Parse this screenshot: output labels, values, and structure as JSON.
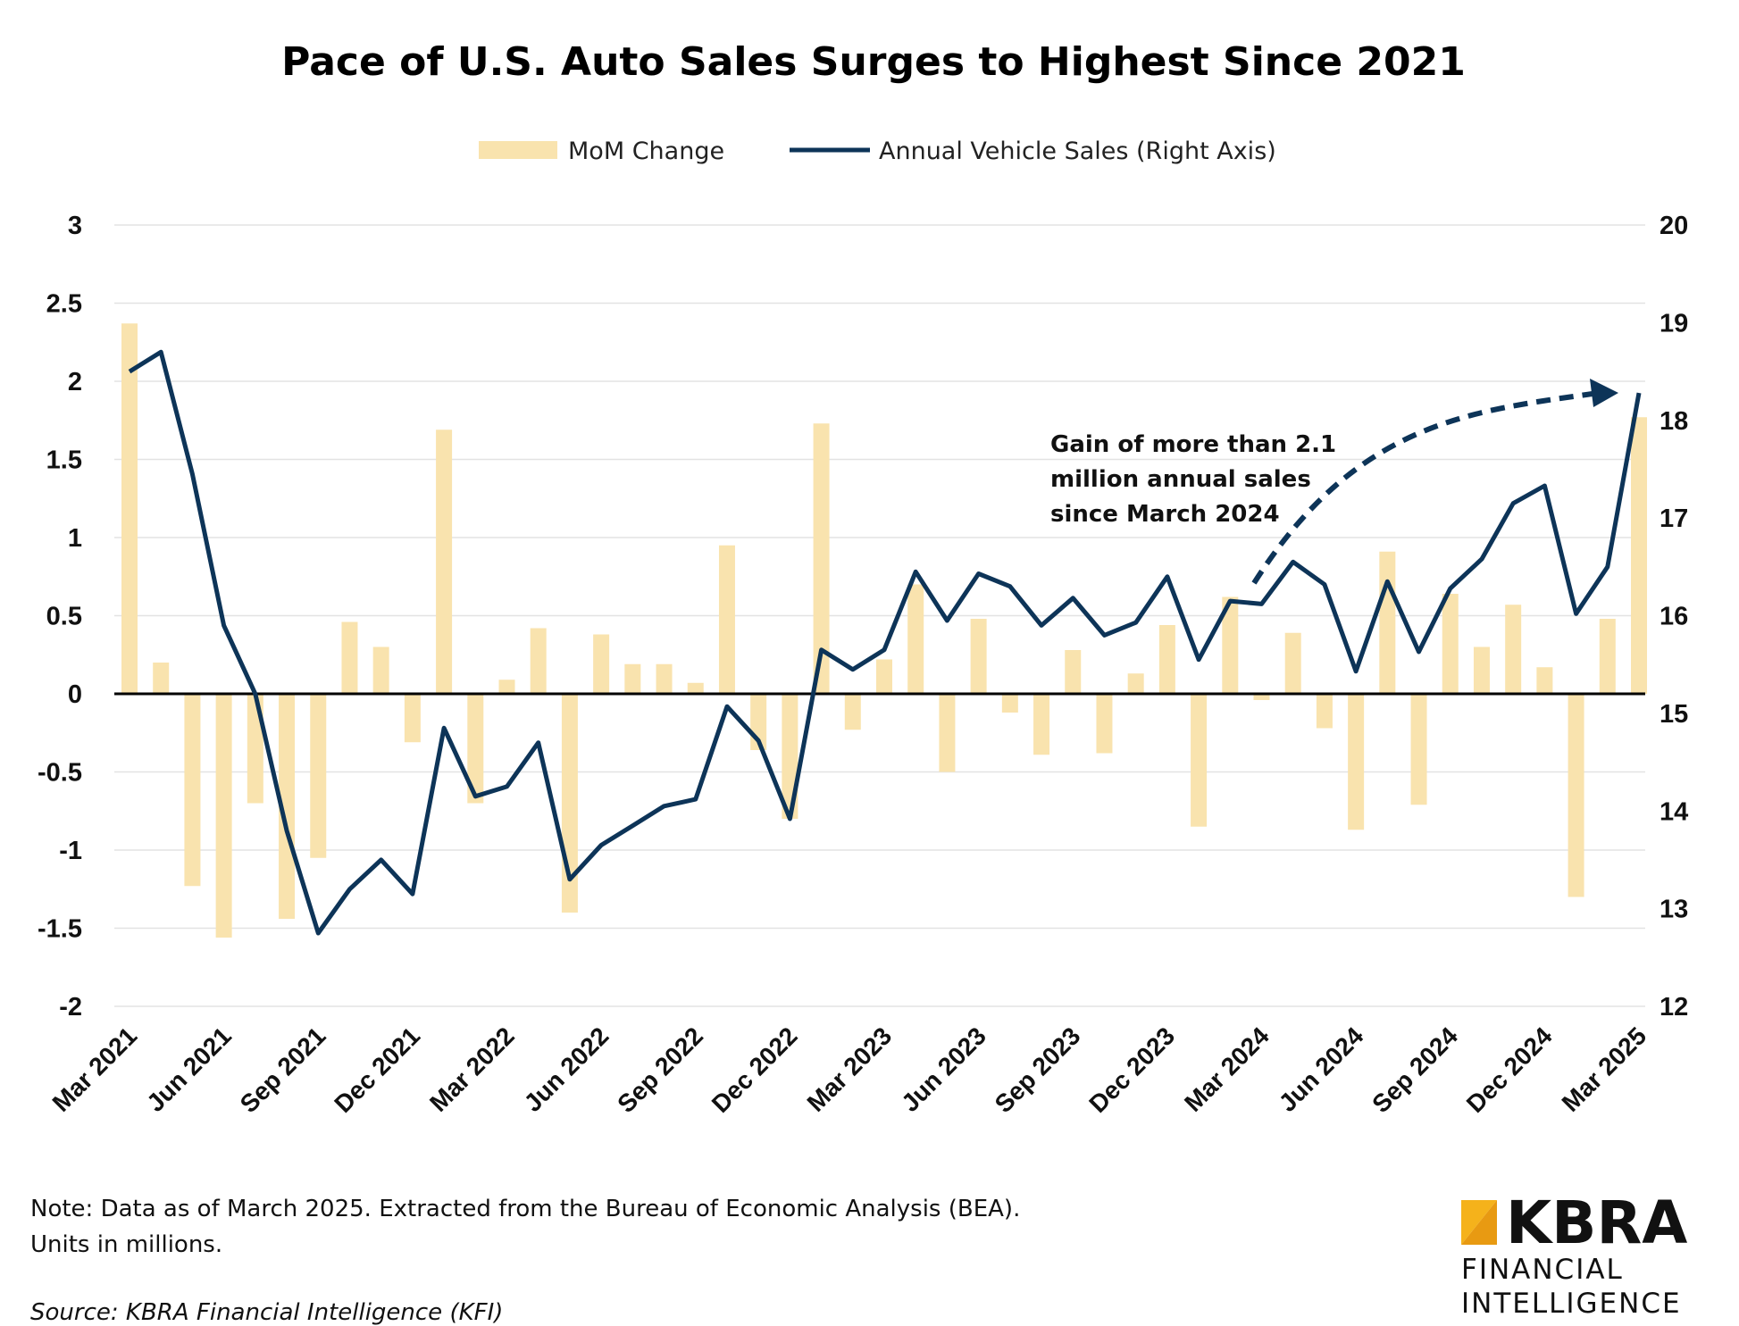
{
  "chart_data": {
    "type": "bar+line",
    "title": "Pace of U.S. Auto Sales Surges to Highest Since 2021",
    "legend_position": "top-center",
    "grid": true,
    "x": [
      "Mar 2021",
      "Apr 2021",
      "May 2021",
      "Jun 2021",
      "Jul 2021",
      "Aug 2021",
      "Sep 2021",
      "Oct 2021",
      "Nov 2021",
      "Dec 2021",
      "Jan 2022",
      "Feb 2022",
      "Mar 2022",
      "Apr 2022",
      "May 2022",
      "Jun 2022",
      "Jul 2022",
      "Aug 2022",
      "Sep 2022",
      "Oct 2022",
      "Nov 2022",
      "Dec 2022",
      "Jan 2023",
      "Feb 2023",
      "Mar 2023",
      "Apr 2023",
      "May 2023",
      "Jun 2023",
      "Jul 2023",
      "Aug 2023",
      "Sep 2023",
      "Oct 2023",
      "Nov 2023",
      "Dec 2023",
      "Jan 2024",
      "Feb 2024",
      "Mar 2024",
      "Apr 2024",
      "May 2024",
      "Jun 2024",
      "Jul 2024",
      "Aug 2024",
      "Sep 2024",
      "Oct 2024",
      "Nov 2024",
      "Dec 2024",
      "Jan 2025",
      "Feb 2025",
      "Mar 2025"
    ],
    "x_tick_labels": [
      "Mar 2021",
      "Jun 2021",
      "Sep 2021",
      "Dec 2021",
      "Mar 2022",
      "Jun 2022",
      "Sep 2022",
      "Dec 2022",
      "Mar 2023",
      "Jun 2023",
      "Sep 2023",
      "Dec 2023",
      "Mar 2024",
      "Jun 2024",
      "Sep 2024",
      "Dec 2024",
      "Mar 2025"
    ],
    "y_left": {
      "range": [
        -2,
        3
      ],
      "ticks": [
        "3",
        "2.5",
        "2",
        "1.5",
        "1",
        "0.5",
        "0",
        "-0.5",
        "-1",
        "-1.5",
        "-2"
      ]
    },
    "y_right": {
      "range": [
        12,
        20
      ],
      "ticks": [
        "20",
        "19",
        "18",
        "17",
        "16",
        "15",
        "14",
        "13",
        "12"
      ]
    },
    "series": [
      {
        "name": "MoM Change",
        "type": "bar",
        "axis": "left",
        "color": "#f9e3ae",
        "values": [
          2.37,
          0.2,
          -1.23,
          -1.56,
          -0.7,
          -1.44,
          -1.05,
          0.46,
          0.3,
          -0.31,
          1.69,
          -0.7,
          0.09,
          0.42,
          -1.4,
          0.38,
          0.19,
          0.19,
          0.07,
          0.95,
          -0.36,
          -0.8,
          1.73,
          -0.23,
          0.22,
          0.7,
          -0.5,
          0.48,
          -0.12,
          -0.39,
          0.28,
          -0.38,
          0.13,
          0.44,
          -0.85,
          0.62,
          -0.04,
          0.39,
          -0.22,
          -0.87,
          0.91,
          -0.71,
          0.64,
          0.3,
          0.57,
          0.17,
          -1.3,
          0.48,
          1.77
        ]
      },
      {
        "name": "Annual Vehicle Sales (Right Axis)",
        "type": "line",
        "axis": "right",
        "color": "#0d3458",
        "values": [
          18.5,
          18.7,
          17.45,
          15.9,
          15.2,
          13.8,
          12.75,
          13.2,
          13.5,
          13.15,
          14.85,
          14.15,
          14.25,
          14.7,
          13.3,
          13.65,
          13.85,
          14.05,
          14.12,
          15.07,
          14.72,
          13.92,
          15.65,
          15.45,
          15.65,
          16.45,
          15.95,
          16.43,
          16.3,
          15.9,
          16.18,
          15.8,
          15.93,
          16.4,
          15.55,
          16.15,
          16.12,
          16.55,
          16.32,
          15.43,
          16.35,
          15.63,
          16.28,
          16.58,
          17.15,
          17.33,
          16.02,
          16.5,
          18.28
        ]
      }
    ],
    "annotation": {
      "lines": [
        "Gain of more than 2.1",
        "million annual sales",
        "since March 2024"
      ]
    },
    "note_lines": [
      "Note: Data as of March 2025. Extracted from the Bureau of Economic Analysis (BEA).",
      "Units in millions."
    ],
    "source": "Source: KBRA Financial Intelligence (KFI)"
  },
  "logo": {
    "main": "KBRA",
    "line1": "FINANCIAL",
    "line2": "INTELLIGENCE",
    "accent_color": "#f5b21b"
  }
}
